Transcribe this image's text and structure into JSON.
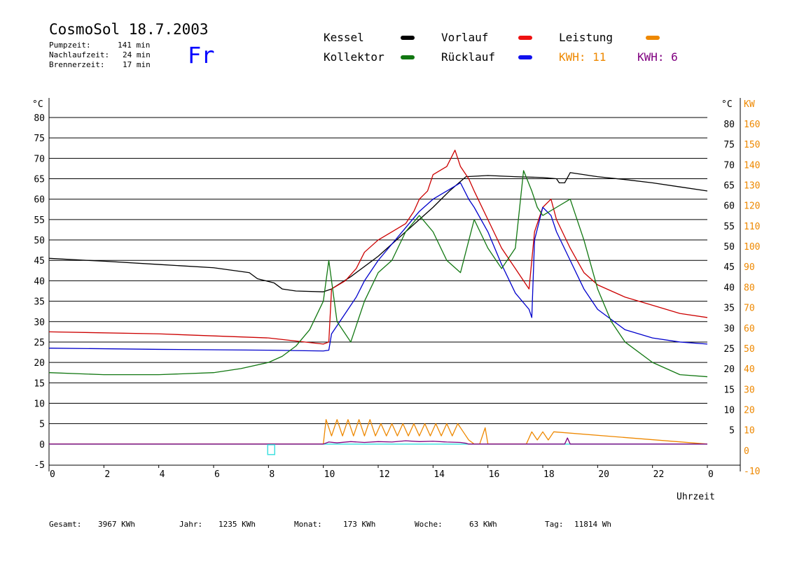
{
  "header": {
    "title": "CosmoSol 18.7.2003",
    "stats": [
      {
        "label": "Pumpzeit:",
        "value": "141 min"
      },
      {
        "label": "Nachlaufzeit:",
        "value": "24 min"
      },
      {
        "label": "Brennerzeit:",
        "value": "17 min"
      }
    ],
    "day": "Fr"
  },
  "legend": {
    "kessel": "Kessel",
    "vorlauf": "Vorlauf",
    "leistung": "Leistung",
    "kollektor": "Kollektor",
    "ruecklauf": "Rücklauf",
    "kwh1": "KWH: 11",
    "kwh2": "KWH: 6"
  },
  "colors": {
    "kessel": "#000000",
    "vorlauf": "#cc0000",
    "ruecklauf": "#0000cc",
    "kollektor": "#117711",
    "leistung": "#ee8800",
    "kwh2": "#800080",
    "baseline": "#40e0e0"
  },
  "footer": [
    {
      "label": "Gesamt:",
      "value": "3967 KWh"
    },
    {
      "label": "Jahr:",
      "value": "1235 KWh"
    },
    {
      "label": "Monat:",
      "value": "173 KWh"
    },
    {
      "label": "Woche:",
      "value": "63 KWh"
    },
    {
      "label": "Tag:",
      "value": "11814 Wh"
    }
  ],
  "chart_data": {
    "type": "line",
    "xlabel": "Uhrzeit",
    "ylabel_left": "°C",
    "ylabel_right_temp": "°C",
    "ylabel_right_power": "KW",
    "xlim": [
      0,
      24
    ],
    "ylim": [
      -5,
      80
    ],
    "grid": true,
    "xticks": [
      "0",
      "2",
      "4",
      "6",
      "8",
      "10",
      "12",
      "14",
      "16",
      "18",
      "20",
      "22",
      "0"
    ],
    "yticks_left": [
      "80",
      "75",
      "70",
      "65",
      "60",
      "55",
      "50",
      "45",
      "40",
      "35",
      "30",
      "25",
      "20",
      "15",
      "10",
      "5",
      "0",
      "-5"
    ],
    "yticks_right_temp": [
      "80",
      "75",
      "70",
      "65",
      "60",
      "55",
      "50",
      "45",
      "40",
      "35",
      "30",
      "25",
      "20",
      "15",
      "10",
      "5"
    ],
    "yticks_right_power": [
      "160",
      "150",
      "140",
      "130",
      "120",
      "110",
      "100",
      "90",
      "80",
      "70",
      "60",
      "50",
      "40",
      "30",
      "20",
      "10",
      "0",
      "-10"
    ],
    "series": [
      {
        "name": "Kessel",
        "x": [
          0,
          2,
          4,
          6,
          7.3,
          7.6,
          8.2,
          8.5,
          9.0,
          10.0,
          10.3,
          11,
          12,
          13,
          14,
          14.6,
          15.2,
          16,
          17,
          18,
          18.5,
          18.6,
          18.8,
          19,
          20,
          21,
          22,
          23,
          24
        ],
        "y": [
          45.5,
          44.8,
          44,
          43.2,
          42,
          40.5,
          39.5,
          38,
          37.5,
          37.3,
          38,
          41,
          46,
          52,
          58,
          62,
          65.5,
          65.8,
          65.5,
          65.3,
          65,
          64,
          64,
          66.5,
          65.5,
          64.8,
          64,
          63,
          62
        ]
      },
      {
        "name": "Vorlauf",
        "x": [
          0,
          4,
          8,
          10,
          10.2,
          10.3,
          10.8,
          11.2,
          11.5,
          12,
          12.5,
          13,
          13.3,
          13.5,
          13.8,
          14,
          14.5,
          14.8,
          15,
          15.3,
          15.5,
          16,
          16.5,
          17,
          17.5,
          17.7,
          18,
          18.3,
          18.5,
          19,
          19.5,
          20,
          21,
          22,
          23,
          24
        ],
        "y": [
          27.5,
          27,
          26,
          24.5,
          25,
          38,
          40,
          43,
          47,
          50,
          52,
          54,
          57,
          60,
          62,
          66,
          68,
          72,
          68,
          65,
          62,
          55,
          48,
          43,
          38,
          52,
          58,
          60,
          55,
          48,
          42,
          39,
          36,
          34,
          32,
          31
        ]
      },
      {
        "name": "Rücklauf",
        "x": [
          0,
          4,
          8,
          10,
          10.2,
          10.3,
          10.8,
          11.2,
          11.5,
          12,
          12.5,
          13,
          13.5,
          14,
          14.5,
          15,
          15.3,
          15.5,
          16,
          16.5,
          17,
          17.5,
          17.6,
          17.7,
          18,
          18.3,
          18.5,
          19,
          19.5,
          20,
          21,
          22,
          23,
          24
        ],
        "y": [
          23.5,
          23.2,
          23,
          22.8,
          23,
          27,
          32,
          36,
          40,
          45,
          49,
          53,
          57,
          60,
          62,
          64,
          60,
          58,
          52,
          44,
          37,
          33,
          31,
          50,
          58,
          56,
          52,
          45,
          38,
          33,
          28,
          26,
          25,
          24.5
        ]
      },
      {
        "name": "Kollektor",
        "x": [
          0,
          2,
          4,
          6,
          7,
          8,
          8.5,
          9,
          9.5,
          10,
          10.2,
          10.5,
          11,
          11.5,
          12,
          12.5,
          13,
          13.5,
          14,
          14.5,
          15,
          15.5,
          16,
          16.5,
          17,
          17.3,
          17.6,
          17.8,
          18,
          18.5,
          19,
          19.5,
          20,
          20.5,
          21,
          22,
          23,
          24
        ],
        "y": [
          17.5,
          17,
          17,
          17.5,
          18.5,
          20,
          21.5,
          24,
          28,
          35,
          45,
          30,
          25,
          35,
          42,
          45,
          52,
          56,
          52,
          45,
          42,
          55,
          48,
          43,
          48,
          67,
          62,
          58,
          56,
          58,
          60,
          50,
          38,
          30,
          25,
          20,
          17,
          16.5
        ]
      },
      {
        "name": "Leistung",
        "x": [
          0,
          10.0,
          10.1,
          10.3,
          10.5,
          10.7,
          10.9,
          11.1,
          11.3,
          11.5,
          11.7,
          11.9,
          12.1,
          12.3,
          12.5,
          12.7,
          12.9,
          13.1,
          13.3,
          13.5,
          13.7,
          13.9,
          14.1,
          14.3,
          14.5,
          14.7,
          14.9,
          15.1,
          15.3,
          15.5,
          15.7,
          15.9,
          16.0,
          17.4,
          17.6,
          17.8,
          18.0,
          18.2,
          18.4,
          24
        ],
        "y": [
          0,
          0,
          6,
          2,
          6,
          2,
          6,
          2,
          6,
          2,
          6,
          2,
          5,
          2,
          5,
          2,
          5,
          2,
          5,
          2,
          5,
          2,
          5,
          2,
          5,
          2,
          5,
          3,
          1,
          0,
          0,
          4,
          0,
          0,
          3,
          1,
          3,
          1,
          3,
          0
        ]
      },
      {
        "name": "KWH: 6",
        "x": [
          0,
          10.0,
          10.2,
          10.5,
          11,
          11.5,
          12,
          12.5,
          13,
          13.5,
          14,
          14.5,
          15,
          15.2,
          15.3,
          18.8,
          18.9,
          19.0,
          24
        ],
        "y": [
          0,
          0,
          0.5,
          0.3,
          0.6,
          0.4,
          0.6,
          0.5,
          0.8,
          0.6,
          0.7,
          0.5,
          0.4,
          0.2,
          0,
          0,
          1.5,
          0,
          0
        ]
      }
    ],
    "markers": [
      {
        "shape": "square",
        "x": 8.1,
        "y": -1
      }
    ]
  }
}
